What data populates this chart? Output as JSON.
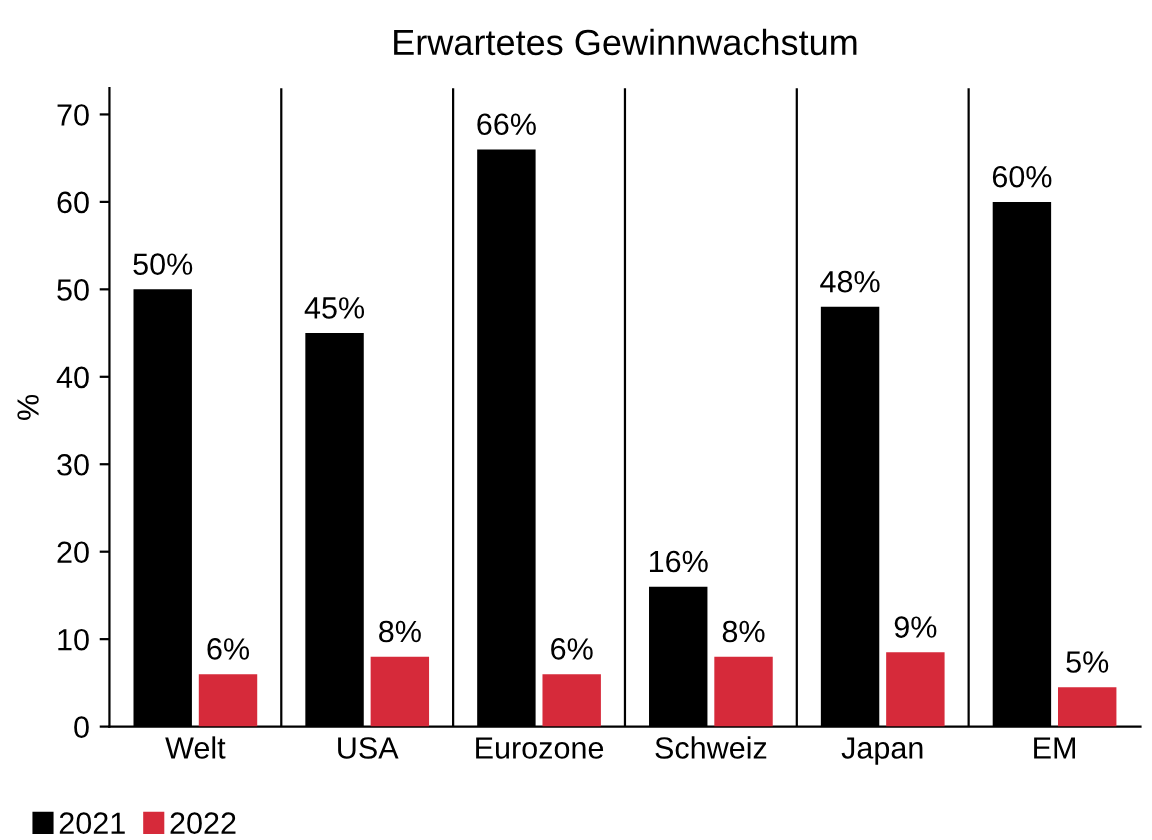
{
  "chart_data": {
    "type": "bar",
    "title": "Erwartetes Gewinnwachstum",
    "ylabel": "%",
    "categories": [
      "Welt",
      "USA",
      "Eurozone",
      "Schweiz",
      "Japan",
      "EM"
    ],
    "series": [
      {
        "name": "2021",
        "color": "#000000",
        "values": [
          50,
          45,
          66,
          16,
          48,
          60
        ],
        "value_labels": [
          "50%",
          "45%",
          "66%",
          "16%",
          "48%",
          "60%"
        ]
      },
      {
        "name": "2022",
        "color": "#d62a3a",
        "values": [
          6,
          8,
          6,
          8,
          8.5,
          4.5
        ],
        "value_labels": [
          "6%",
          "8%",
          "6%",
          "8%",
          "9%",
          "5%"
        ]
      }
    ],
    "ylim": [
      0,
      73
    ],
    "yticks": [
      0,
      10,
      20,
      30,
      40,
      50,
      60,
      70
    ],
    "grid": "x",
    "legend": "bottom left"
  }
}
